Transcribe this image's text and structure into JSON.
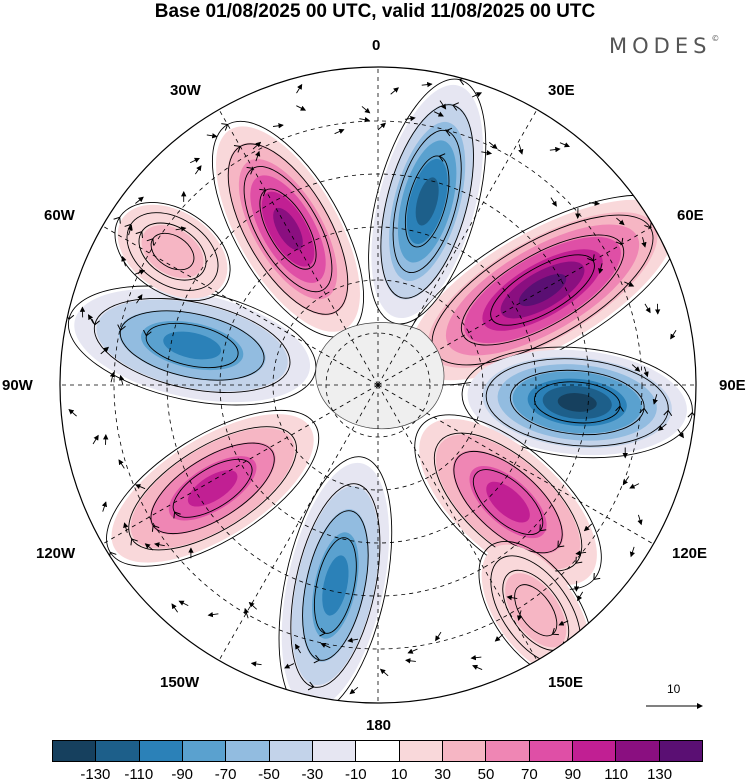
{
  "title": "Base 01/08/2025 00 UTC, valid 11/08/2025 00 UTC",
  "brand": {
    "name": "MODES",
    "mark": "©"
  },
  "longitude_labels": {
    "n": "0",
    "ne30": "30E",
    "ne60": "60E",
    "e90": "90E",
    "se120": "120E",
    "se150": "150E",
    "s180": "180",
    "sw150": "150W",
    "w120": "120W",
    "w90": "90W",
    "nw60": "60W",
    "nw30": "30W"
  },
  "vector_reference": {
    "value": "10"
  },
  "colorbar": {
    "colors": [
      "#16405e",
      "#1d5f8a",
      "#2b81b8",
      "#5aa1cf",
      "#92bce0",
      "#c3d3ea",
      "#e6e6f2",
      "#ffffff",
      "#f9d8da",
      "#f6b6c4",
      "#ef86b4",
      "#df4fa6",
      "#c11f93",
      "#8a0f80",
      "#5a0f73"
    ],
    "labels": [
      "-130",
      "-110",
      "-90",
      "-70",
      "-50",
      "-30",
      "-10",
      "10",
      "30",
      "50",
      "70",
      "90",
      "110",
      "130"
    ]
  },
  "anomaly_cells": [
    {
      "name": "positive-cell-60e",
      "angle": 60,
      "r": 190,
      "rx": 150,
      "ry": 58,
      "value": 140
    },
    {
      "name": "negative-cell-90e",
      "angle": 95,
      "r": 200,
      "rx": 110,
      "ry": 52,
      "value": -140
    },
    {
      "name": "positive-cell-130e",
      "angle": 132,
      "r": 175,
      "rx": 110,
      "ry": 52,
      "value": 100
    },
    {
      "name": "negative-cell-160w",
      "angle": 192,
      "r": 205,
      "rx": 125,
      "ry": 48,
      "value": -95
    },
    {
      "name": "positive-cell-130w",
      "angle": 238,
      "r": 195,
      "rx": 115,
      "ry": 50,
      "value": 100
    },
    {
      "name": "negative-cell-80w",
      "angle": 282,
      "r": 190,
      "rx": 120,
      "ry": 52,
      "value": -90
    },
    {
      "name": "positive-cell-30w",
      "angle": 330,
      "r": 180,
      "rx": 115,
      "ry": 50,
      "value": 125
    },
    {
      "name": "negative-cell-10e",
      "angle": 15,
      "r": 190,
      "rx": 120,
      "ry": 48,
      "value": -120
    },
    {
      "name": "weak-positive-40w",
      "angle": 303,
      "r": 245,
      "rx": 60,
      "ry": 40,
      "value": 35
    },
    {
      "name": "weak-positive-140e",
      "angle": 145,
      "r": 275,
      "rx": 75,
      "ry": 40,
      "value": 40
    }
  ]
}
